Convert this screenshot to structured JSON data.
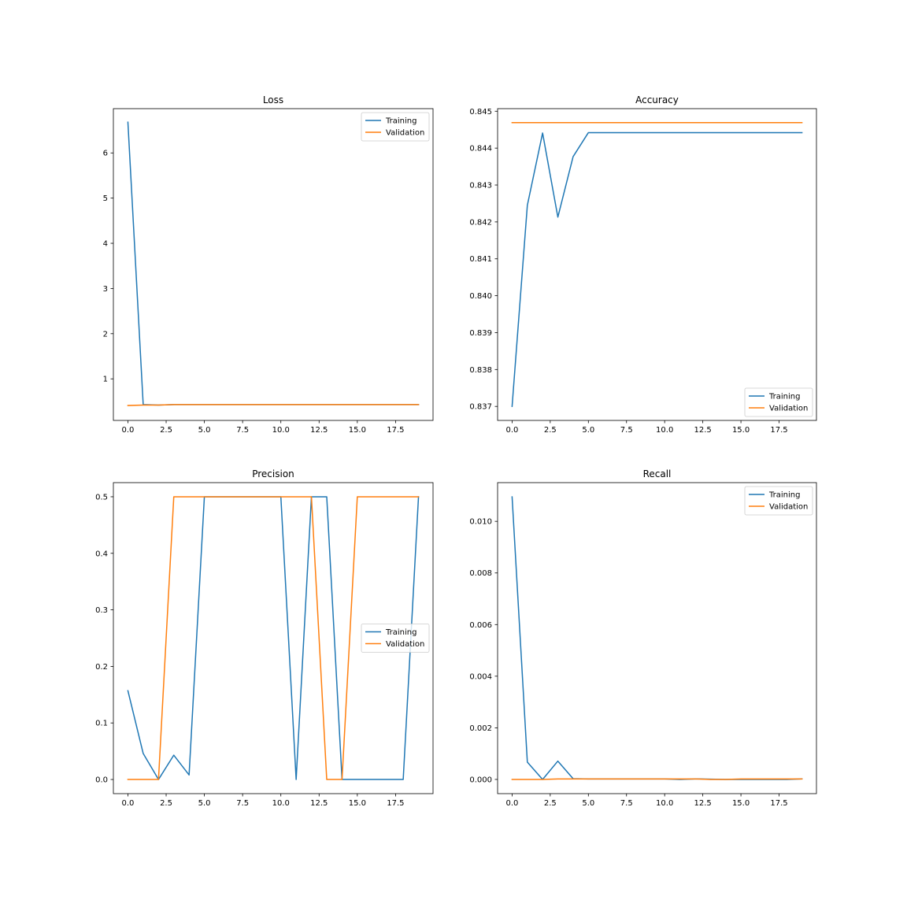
{
  "chart_data": [
    {
      "type": "line",
      "title": "Loss",
      "xlabel": "",
      "ylabel": "",
      "x": [
        0,
        1,
        2,
        3,
        4,
        5,
        6,
        7,
        8,
        9,
        10,
        11,
        12,
        13,
        14,
        15,
        16,
        17,
        18,
        19
      ],
      "series": [
        {
          "name": "Training",
          "color": "#1f77b4",
          "values": [
            6.68,
            0.43,
            0.42,
            0.43,
            0.43,
            0.43,
            0.43,
            0.43,
            0.43,
            0.43,
            0.43,
            0.43,
            0.43,
            0.43,
            0.43,
            0.43,
            0.43,
            0.43,
            0.43,
            0.43
          ]
        },
        {
          "name": "Validation",
          "color": "#ff7f0e",
          "values": [
            0.41,
            0.42,
            0.42,
            0.43,
            0.43,
            0.43,
            0.43,
            0.43,
            0.43,
            0.43,
            0.43,
            0.43,
            0.43,
            0.43,
            0.43,
            0.43,
            0.43,
            0.43,
            0.43,
            0.43
          ]
        }
      ],
      "xlim": [
        -0.95,
        19.95
      ],
      "ylim": [
        0.08,
        6.98
      ],
      "xticks": [
        0,
        2.5,
        5,
        7.5,
        10,
        12.5,
        15,
        17.5
      ],
      "xtick_labels": [
        "0.0",
        "2.5",
        "5.0",
        "7.5",
        "10.0",
        "12.5",
        "15.0",
        "17.5"
      ],
      "yticks": [
        1,
        2,
        3,
        4,
        5,
        6
      ],
      "ytick_labels": [
        "1",
        "2",
        "3",
        "4",
        "5",
        "6"
      ],
      "legend": "upper right",
      "grid": false
    },
    {
      "type": "line",
      "title": "Accuracy",
      "xlabel": "",
      "ylabel": "",
      "x": [
        0,
        1,
        2,
        3,
        4,
        5,
        6,
        7,
        8,
        9,
        10,
        11,
        12,
        13,
        14,
        15,
        16,
        17,
        18,
        19
      ],
      "series": [
        {
          "name": "Training",
          "color": "#1f77b4",
          "values": [
            0.837,
            0.84245,
            0.84441,
            0.84213,
            0.84377,
            0.84442,
            0.84442,
            0.84442,
            0.84442,
            0.84442,
            0.84442,
            0.84442,
            0.84442,
            0.84442,
            0.84442,
            0.84442,
            0.84442,
            0.84442,
            0.84442,
            0.84442
          ]
        },
        {
          "name": "Validation",
          "color": "#ff7f0e",
          "values": [
            0.84469,
            0.84469,
            0.84469,
            0.84469,
            0.84469,
            0.84469,
            0.84469,
            0.84469,
            0.84469,
            0.84469,
            0.84469,
            0.84469,
            0.84469,
            0.84469,
            0.84469,
            0.84469,
            0.84469,
            0.84469,
            0.84469,
            0.84469
          ]
        }
      ],
      "xlim": [
        -0.95,
        19.95
      ],
      "ylim": [
        0.83662,
        0.84507
      ],
      "xticks": [
        0,
        2.5,
        5,
        7.5,
        10,
        12.5,
        15,
        17.5
      ],
      "xtick_labels": [
        "0.0",
        "2.5",
        "5.0",
        "7.5",
        "10.0",
        "12.5",
        "15.0",
        "17.5"
      ],
      "yticks": [
        0.837,
        0.838,
        0.839,
        0.84,
        0.841,
        0.842,
        0.843,
        0.844,
        0.845
      ],
      "ytick_labels": [
        "0.837",
        "0.838",
        "0.839",
        "0.840",
        "0.841",
        "0.842",
        "0.843",
        "0.844",
        "0.845"
      ],
      "legend": "lower right",
      "grid": false
    },
    {
      "type": "line",
      "title": "Precision",
      "xlabel": "",
      "ylabel": "",
      "x": [
        0,
        1,
        2,
        3,
        4,
        5,
        6,
        7,
        8,
        9,
        10,
        11,
        12,
        13,
        14,
        15,
        16,
        17,
        18,
        19
      ],
      "series": [
        {
          "name": "Training",
          "color": "#1f77b4",
          "values": [
            0.157,
            0.046,
            0.0,
            0.043,
            0.008,
            0.5,
            0.5,
            0.5,
            0.5,
            0.5,
            0.5,
            0.0,
            0.5,
            0.5,
            0.0,
            0.0,
            0.0,
            0.0,
            0.0,
            0.5
          ]
        },
        {
          "name": "Validation",
          "color": "#ff7f0e",
          "values": [
            0.0,
            0.0,
            0.0,
            0.5,
            0.5,
            0.5,
            0.5,
            0.5,
            0.5,
            0.5,
            0.5,
            0.5,
            0.5,
            0.0,
            0.0,
            0.5,
            0.5,
            0.5,
            0.5,
            0.5
          ]
        }
      ],
      "xlim": [
        -0.95,
        19.95
      ],
      "ylim": [
        -0.025,
        0.525
      ],
      "xticks": [
        0,
        2.5,
        5,
        7.5,
        10,
        12.5,
        15,
        17.5
      ],
      "xtick_labels": [
        "0.0",
        "2.5",
        "5.0",
        "7.5",
        "10.0",
        "12.5",
        "15.0",
        "17.5"
      ],
      "yticks": [
        0.0,
        0.1,
        0.2,
        0.3,
        0.4,
        0.5
      ],
      "ytick_labels": [
        "0.0",
        "0.1",
        "0.2",
        "0.3",
        "0.4",
        "0.5"
      ],
      "legend": "center right",
      "grid": false
    },
    {
      "type": "line",
      "title": "Recall",
      "xlabel": "",
      "ylabel": "",
      "x": [
        0,
        1,
        2,
        3,
        4,
        5,
        6,
        7,
        8,
        9,
        10,
        11,
        12,
        13,
        14,
        15,
        16,
        17,
        18,
        19
      ],
      "series": [
        {
          "name": "Training",
          "color": "#1f77b4",
          "values": [
            0.01095,
            0.00067,
            0.0,
            0.00071,
            3e-05,
            2e-05,
            2e-05,
            2e-05,
            2e-05,
            2e-05,
            2e-05,
            0.0,
            2e-05,
            1e-05,
            0.0,
            0.0,
            0.0,
            0.0,
            0.0,
            2e-05
          ]
        },
        {
          "name": "Validation",
          "color": "#ff7f0e",
          "values": [
            0.0,
            0.0,
            0.0,
            2e-05,
            2e-05,
            2e-05,
            2e-05,
            2e-05,
            2e-05,
            2e-05,
            2e-05,
            2e-05,
            2e-05,
            0.0,
            0.0,
            2e-05,
            2e-05,
            2e-05,
            2e-05,
            2e-05
          ]
        }
      ],
      "xlim": [
        -0.95,
        19.95
      ],
      "ylim": [
        -0.00055,
        0.0115
      ],
      "xticks": [
        0,
        2.5,
        5,
        7.5,
        10,
        12.5,
        15,
        17.5
      ],
      "xtick_labels": [
        "0.0",
        "2.5",
        "5.0",
        "7.5",
        "10.0",
        "12.5",
        "15.0",
        "17.5"
      ],
      "yticks": [
        0.0,
        0.002,
        0.004,
        0.006,
        0.008,
        0.01
      ],
      "ytick_labels": [
        "0.000",
        "0.002",
        "0.004",
        "0.006",
        "0.008",
        "0.010"
      ],
      "legend": "upper right",
      "grid": false
    }
  ]
}
